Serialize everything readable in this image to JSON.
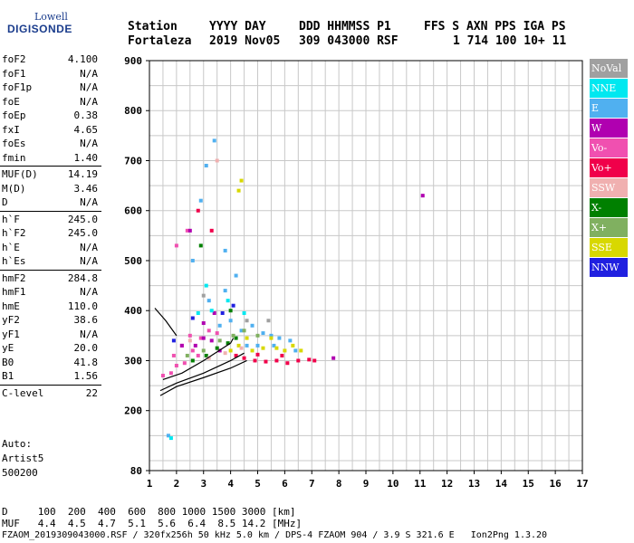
{
  "logo": {
    "brand": "Lowell",
    "product": "DIGISONDE"
  },
  "header": {
    "row1": [
      "Station",
      "YYYY DAY",
      "DDD HHMMSS P1",
      "FFS S AXN PPS IGA PS"
    ],
    "row2": [
      "Fortaleza",
      "2019 Nov05",
      "309 043000 RSF",
      "1 714 100 10+ 11"
    ]
  },
  "params": [
    [
      [
        "foF2",
        "4.100"
      ],
      [
        "foF1",
        "N/A"
      ],
      [
        "foF1p",
        "N/A"
      ],
      [
        "foE",
        "N/A"
      ],
      [
        "foEp",
        "0.38"
      ],
      [
        "fxI",
        "4.65"
      ],
      [
        "foEs",
        "N/A"
      ],
      [
        "fmin",
        "1.40"
      ]
    ],
    [
      [
        "MUF(D)",
        "14.19"
      ],
      [
        "M(D)",
        "3.46"
      ],
      [
        "D",
        "N/A"
      ]
    ],
    [
      [
        "h`F",
        "245.0"
      ],
      [
        "h`F2",
        "245.0"
      ],
      [
        "h`E",
        "N/A"
      ],
      [
        "h`Es",
        "N/A"
      ]
    ],
    [
      [
        "hmF2",
        "284.8"
      ],
      [
        "hmF1",
        "N/A"
      ],
      [
        "hmE",
        "110.0"
      ],
      [
        "yF2",
        "38.6"
      ],
      [
        "yF1",
        "N/A"
      ],
      [
        "yE",
        "20.0"
      ],
      [
        "B0",
        "41.8"
      ],
      [
        "B1",
        "1.56"
      ]
    ],
    [
      [
        "C-level",
        "22"
      ]
    ]
  ],
  "auto": [
    "Auto:",
    "Artist5",
    "500200"
  ],
  "legend": [
    {
      "label": "NoVal",
      "color": "#a0a0a0"
    },
    {
      "label": "NNE",
      "color": "#00e8f0"
    },
    {
      "label": "E",
      "color": "#50b0f0"
    },
    {
      "label": "W",
      "color": "#b000b0"
    },
    {
      "label": "Vo-",
      "color": "#f050b0"
    },
    {
      "label": "Vo+",
      "color": "#f0004a"
    },
    {
      "label": "SSW",
      "color": "#f0b0b0"
    },
    {
      "label": "X-",
      "color": "#008000"
    },
    {
      "label": "X+",
      "color": "#80b060"
    },
    {
      "label": "SSE",
      "color": "#d8d800"
    },
    {
      "label": "NNW",
      "color": "#2020e0"
    }
  ],
  "mufTable": {
    "d_row": "D     100  200  400  600  800 1000 1500 3000 [km]",
    "muf_row": "MUF   4.4  4.5  4.7  5.1  5.6  6.4  8.5 14.2 [MHz]"
  },
  "footer": "FZAOM_2019309043000.RSF / 320fx256h 50 kHz 5.0 km / DPS-4 FZAOM 904 / 3.9 S 321.6 E   Ion2Png 1.3.20",
  "chart_data": {
    "type": "scatter",
    "title": "",
    "xlabel": "",
    "ylabel": "",
    "xlim": [
      1,
      17
    ],
    "ylim": [
      80,
      900
    ],
    "x_ticks": [
      1,
      2,
      3,
      4,
      5,
      6,
      7,
      8,
      9,
      10,
      11,
      12,
      13,
      14,
      15,
      16,
      17
    ],
    "y_ticks": [
      80,
      200,
      300,
      400,
      500,
      600,
      700,
      800,
      900
    ],
    "series": [
      {
        "name": "E",
        "color": "#50b0f0",
        "points": [
          [
            3.6,
            370
          ],
          [
            4.0,
            380
          ],
          [
            4.4,
            360
          ],
          [
            4.8,
            370
          ],
          [
            5.2,
            355
          ],
          [
            5.5,
            350
          ],
          [
            5.8,
            345
          ],
          [
            6.2,
            340
          ],
          [
            3.2,
            420
          ],
          [
            3.8,
            440
          ],
          [
            2.6,
            500
          ],
          [
            2.9,
            620
          ],
          [
            3.1,
            690
          ],
          [
            3.4,
            740
          ],
          [
            3.8,
            520
          ],
          [
            4.2,
            470
          ],
          [
            4.6,
            330
          ],
          [
            5.0,
            330
          ],
          [
            5.6,
            330
          ],
          [
            6.4,
            320
          ],
          [
            1.7,
            150
          ]
        ]
      },
      {
        "name": "Vo-",
        "color": "#f050b0",
        "points": [
          [
            1.5,
            270
          ],
          [
            1.8,
            275
          ],
          [
            2.0,
            290
          ],
          [
            2.3,
            295
          ],
          [
            2.6,
            320
          ],
          [
            2.9,
            345
          ],
          [
            3.2,
            360
          ],
          [
            3.5,
            355
          ],
          [
            1.9,
            310
          ],
          [
            2.2,
            330
          ],
          [
            2.5,
            350
          ],
          [
            2.8,
            310
          ],
          [
            2.0,
            530
          ],
          [
            2.4,
            560
          ]
        ]
      },
      {
        "name": "Vo+",
        "color": "#f0004a",
        "points": [
          [
            4.5,
            305
          ],
          [
            4.9,
            300
          ],
          [
            5.3,
            298
          ],
          [
            5.7,
            300
          ],
          [
            6.1,
            295
          ],
          [
            6.5,
            300
          ],
          [
            6.9,
            302
          ],
          [
            7.1,
            300
          ],
          [
            4.2,
            310
          ],
          [
            5.0,
            312
          ],
          [
            5.9,
            310
          ],
          [
            2.8,
            600
          ],
          [
            3.3,
            560
          ]
        ]
      },
      {
        "name": "W",
        "color": "#b000b0",
        "points": [
          [
            2.7,
            330
          ],
          [
            3.0,
            345
          ],
          [
            3.3,
            340
          ],
          [
            3.6,
            320
          ],
          [
            3.0,
            375
          ],
          [
            3.4,
            395
          ],
          [
            2.5,
            560
          ],
          [
            2.2,
            330
          ],
          [
            7.8,
            305
          ],
          [
            11.1,
            630
          ]
        ]
      },
      {
        "name": "SSE",
        "color": "#d8d800",
        "points": [
          [
            4.3,
            330
          ],
          [
            4.8,
            320
          ],
          [
            5.2,
            325
          ],
          [
            5.7,
            325
          ],
          [
            6.0,
            320
          ],
          [
            6.3,
            330
          ],
          [
            6.6,
            320
          ],
          [
            4.6,
            345
          ],
          [
            5.5,
            345
          ],
          [
            4.0,
            320
          ],
          [
            4.4,
            660
          ],
          [
            4.3,
            640
          ]
        ]
      },
      {
        "name": "X-",
        "color": "#008000",
        "points": [
          [
            2.6,
            300
          ],
          [
            3.1,
            310
          ],
          [
            3.5,
            325
          ],
          [
            3.9,
            335
          ],
          [
            4.2,
            345
          ],
          [
            2.9,
            530
          ],
          [
            4.0,
            400
          ]
        ]
      },
      {
        "name": "X+",
        "color": "#80b060",
        "points": [
          [
            3.0,
            320
          ],
          [
            3.6,
            340
          ],
          [
            4.1,
            350
          ],
          [
            4.5,
            360
          ],
          [
            5.0,
            350
          ],
          [
            2.4,
            310
          ]
        ]
      },
      {
        "name": "NNE",
        "color": "#00e8f0",
        "points": [
          [
            2.8,
            395
          ],
          [
            3.3,
            400
          ],
          [
            3.9,
            420
          ],
          [
            4.5,
            395
          ],
          [
            3.1,
            450
          ],
          [
            1.8,
            145
          ]
        ]
      },
      {
        "name": "NNW",
        "color": "#2020e0",
        "points": [
          [
            2.6,
            385
          ],
          [
            3.7,
            395
          ],
          [
            4.1,
            410
          ],
          [
            1.9,
            340
          ]
        ]
      },
      {
        "name": "SSW",
        "color": "#f0b0b0",
        "points": [
          [
            3.2,
            305
          ],
          [
            3.8,
            315
          ],
          [
            4.4,
            325
          ],
          [
            2.5,
            340
          ],
          [
            3.5,
            700
          ]
        ]
      },
      {
        "name": "NoVal",
        "color": "#a0a0a0",
        "points": [
          [
            4.6,
            380
          ],
          [
            5.4,
            380
          ],
          [
            3.0,
            430
          ]
        ]
      }
    ],
    "trace_lines": [
      {
        "color": "#000000",
        "points": [
          [
            1.4,
            240
          ],
          [
            2.0,
            255
          ],
          [
            3.0,
            275
          ],
          [
            4.0,
            300
          ],
          [
            4.5,
            315
          ]
        ]
      },
      {
        "color": "#000000",
        "points": [
          [
            1.4,
            230
          ],
          [
            2.0,
            248
          ],
          [
            3.0,
            266
          ],
          [
            4.0,
            285
          ],
          [
            4.6,
            300
          ]
        ]
      },
      {
        "color": "#000000",
        "points": [
          [
            1.5,
            262
          ],
          [
            2.2,
            275
          ],
          [
            3.0,
            300
          ],
          [
            4.0,
            335
          ],
          [
            4.1,
            345
          ]
        ]
      },
      {
        "color": "#000000",
        "points": [
          [
            1.2,
            405
          ],
          [
            1.6,
            380
          ],
          [
            2.0,
            350
          ]
        ]
      }
    ]
  }
}
